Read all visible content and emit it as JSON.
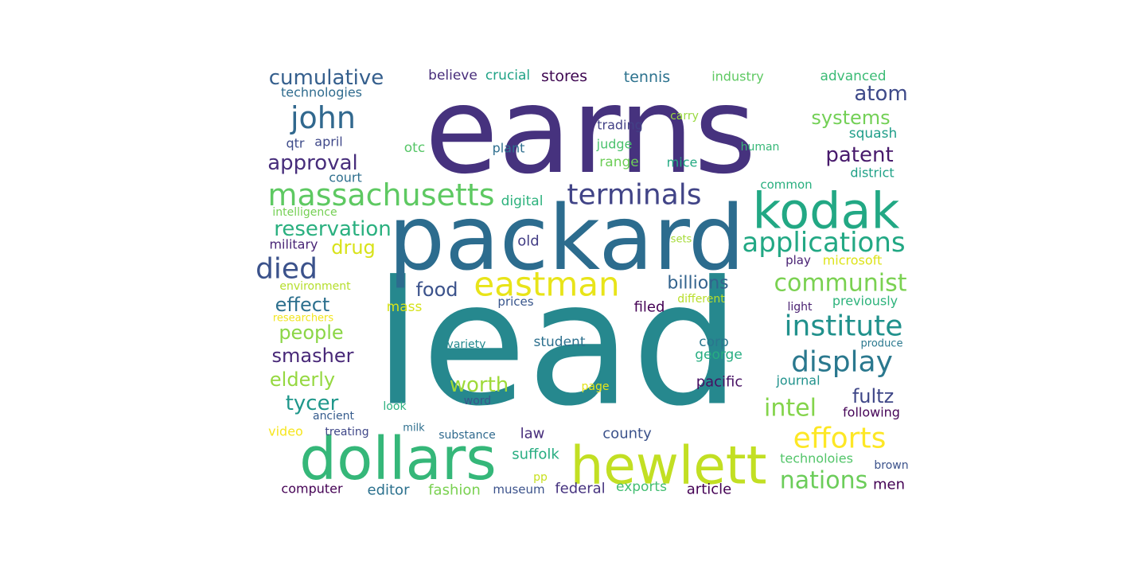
{
  "wordcloud": {
    "words": [
      {
        "text": "earns",
        "color": "#46327e"
      },
      {
        "text": "lead",
        "color": "#26888e"
      },
      {
        "text": "packard",
        "color": "#2c6c8e"
      },
      {
        "text": "hewlett",
        "color": "#c2df23"
      },
      {
        "text": "dollars",
        "color": "#35b779"
      },
      {
        "text": "kodak",
        "color": "#22a884"
      },
      {
        "text": "eastman",
        "color": "#e8e419"
      },
      {
        "text": "massachusetts",
        "color": "#5ec962"
      },
      {
        "text": "terminals",
        "color": "#414487"
      },
      {
        "text": "applications",
        "color": "#22a884"
      },
      {
        "text": "institute",
        "color": "#21918c"
      },
      {
        "text": "efforts",
        "color": "#fde725"
      },
      {
        "text": "display",
        "color": "#2a788e"
      },
      {
        "text": "communist",
        "color": "#7ad151"
      },
      {
        "text": "nations",
        "color": "#6ccd5a"
      },
      {
        "text": "john",
        "color": "#31688e"
      },
      {
        "text": "died",
        "color": "#3b528b"
      },
      {
        "text": "cumulative",
        "color": "#355f8d"
      },
      {
        "text": "reservation",
        "color": "#2ab07f"
      },
      {
        "text": "approval",
        "color": "#472d7b"
      },
      {
        "text": "systems",
        "color": "#73d056"
      },
      {
        "text": "atom",
        "color": "#3e4a89"
      },
      {
        "text": "patent",
        "color": "#481a6c"
      },
      {
        "text": "intel",
        "color": "#84d44b"
      },
      {
        "text": "worth",
        "color": "#9fda3a"
      },
      {
        "text": "fultz",
        "color": "#3f4788"
      },
      {
        "text": "smasher",
        "color": "#482878"
      },
      {
        "text": "elderly",
        "color": "#95d840"
      },
      {
        "text": "tycer",
        "color": "#1f978b"
      },
      {
        "text": "effect",
        "color": "#2d708e"
      },
      {
        "text": "people",
        "color": "#8bd646"
      },
      {
        "text": "drug",
        "color": "#d8e219"
      },
      {
        "text": "food",
        "color": "#3b528b"
      },
      {
        "text": "billions",
        "color": "#33638d"
      },
      {
        "text": "stores",
        "color": "#3e0751"
      },
      {
        "text": "tennis",
        "color": "#2c728e"
      },
      {
        "text": "believe",
        "color": "#472c7a"
      },
      {
        "text": "crucial",
        "color": "#20a386"
      },
      {
        "text": "industry",
        "color": "#5ec962"
      },
      {
        "text": "advanced",
        "color": "#3bbb75"
      },
      {
        "text": "technologies",
        "color": "#2f6b8e"
      },
      {
        "text": "qtr",
        "color": "#3e4c8a"
      },
      {
        "text": "april",
        "color": "#3f4889"
      },
      {
        "text": "court",
        "color": "#2e6f8e"
      },
      {
        "text": "otc",
        "color": "#56c667"
      },
      {
        "text": "plant",
        "color": "#2e6e8e"
      },
      {
        "text": "trading",
        "color": "#424186"
      },
      {
        "text": "judge",
        "color": "#4ac16d"
      },
      {
        "text": "range",
        "color": "#6ece58"
      },
      {
        "text": "mice",
        "color": "#24aa83"
      },
      {
        "text": "carry",
        "color": "#98d83e"
      },
      {
        "text": "human",
        "color": "#37b878"
      },
      {
        "text": "squash",
        "color": "#1f9e89"
      },
      {
        "text": "district",
        "color": "#1fa187"
      },
      {
        "text": "common",
        "color": "#29af7f"
      },
      {
        "text": "digital",
        "color": "#2db27d"
      },
      {
        "text": "intelligence",
        "color": "#75d054"
      },
      {
        "text": "military",
        "color": "#482475"
      },
      {
        "text": "old",
        "color": "#433e85"
      },
      {
        "text": "sets",
        "color": "#a5db36"
      },
      {
        "text": "play",
        "color": "#482173"
      },
      {
        "text": "microsoft",
        "color": "#dde318"
      },
      {
        "text": "environment",
        "color": "#b5de2b"
      },
      {
        "text": "mass",
        "color": "#d5e21a"
      },
      {
        "text": "prices",
        "color": "#39568c"
      },
      {
        "text": "filed",
        "color": "#440154"
      },
      {
        "text": "different",
        "color": "#b8de29"
      },
      {
        "text": "light",
        "color": "#481f70"
      },
      {
        "text": "previously",
        "color": "#2eb37c"
      },
      {
        "text": "researchers",
        "color": "#f1e51d"
      },
      {
        "text": "variety",
        "color": "#23898e"
      },
      {
        "text": "student",
        "color": "#2d708e"
      },
      {
        "text": "corp",
        "color": "#2a768e"
      },
      {
        "text": "george",
        "color": "#26ad81"
      },
      {
        "text": "produce",
        "color": "#2a788e"
      },
      {
        "text": "page",
        "color": "#e5e419"
      },
      {
        "text": "pacific",
        "color": "#471063"
      },
      {
        "text": "journal",
        "color": "#20928c"
      },
      {
        "text": "look",
        "color": "#2ab07f"
      },
      {
        "text": "word",
        "color": "#3a548c"
      },
      {
        "text": "following",
        "color": "#450457"
      },
      {
        "text": "ancient",
        "color": "#365c8d"
      },
      {
        "text": "video",
        "color": "#f6e620"
      },
      {
        "text": "treating",
        "color": "#3f4788"
      },
      {
        "text": "milk",
        "color": "#2e6f8e"
      },
      {
        "text": "substance",
        "color": "#306a8e"
      },
      {
        "text": "law",
        "color": "#472d7b"
      },
      {
        "text": "county",
        "color": "#3b528b"
      },
      {
        "text": "suffolk",
        "color": "#27ad81"
      },
      {
        "text": "technoloies",
        "color": "#52c569"
      },
      {
        "text": "brown",
        "color": "#3b528b"
      },
      {
        "text": "pp",
        "color": "#c8e020"
      },
      {
        "text": "computer",
        "color": "#440154"
      },
      {
        "text": "editor",
        "color": "#2c718e"
      },
      {
        "text": "fashion",
        "color": "#7ad151"
      },
      {
        "text": "museum",
        "color": "#3b528b"
      },
      {
        "text": "federal",
        "color": "#46337f"
      },
      {
        "text": "exports",
        "color": "#42be71"
      },
      {
        "text": "article",
        "color": "#440154"
      },
      {
        "text": "men",
        "color": "#440154"
      }
    ]
  }
}
